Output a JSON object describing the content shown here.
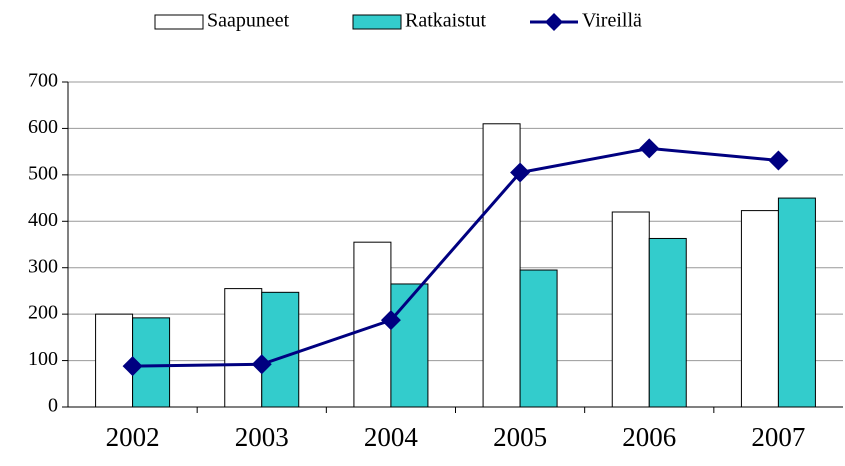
{
  "chart_data": {
    "type": "bar",
    "categories": [
      "2002",
      "2003",
      "2004",
      "2005",
      "2006",
      "2007"
    ],
    "series": [
      {
        "name": "Saapuneet",
        "color": "#ffffff",
        "values": [
          200,
          255,
          355,
          610,
          420,
          423
        ]
      },
      {
        "name": "Ratkaistut",
        "color": "#33cccc",
        "values": [
          192,
          247,
          265,
          295,
          363,
          450
        ]
      },
      {
        "name": "Vireillä",
        "color": "#000080",
        "type": "line",
        "values": [
          88,
          92,
          187,
          505,
          557,
          531
        ]
      }
    ],
    "ylim": [
      0,
      700
    ],
    "yticks": [
      0,
      100,
      200,
      300,
      400,
      500,
      600,
      700
    ],
    "grid": true,
    "legend": "top"
  }
}
